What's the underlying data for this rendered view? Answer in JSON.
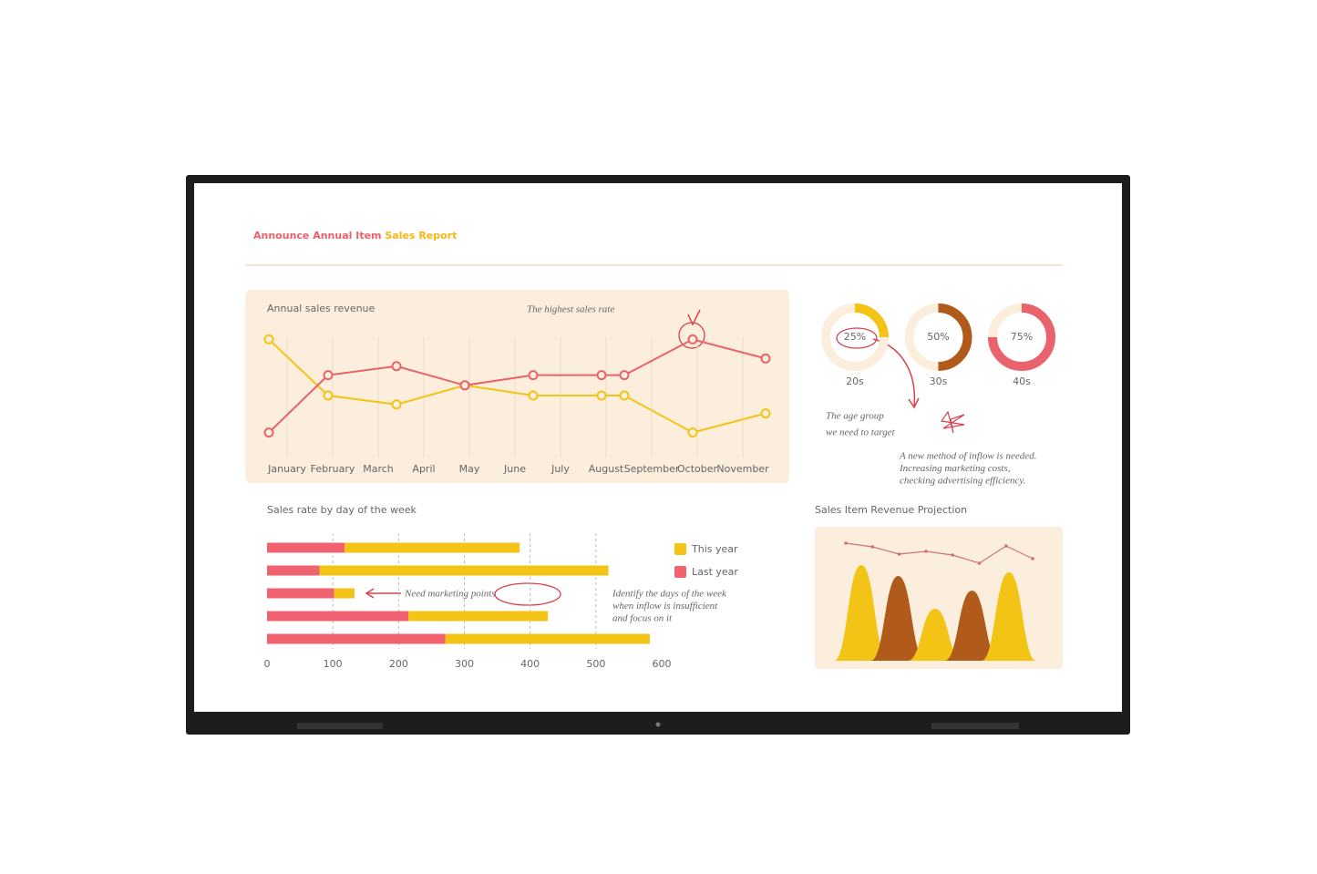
{
  "header": {
    "title": [
      {
        "text": "Announce Annual Item",
        "color": "#e95f6a"
      },
      {
        "text": "Sales Report",
        "color": "#f3b712"
      }
    ]
  },
  "chart_data": [
    {
      "type": "line",
      "title": "Annual sales revenue",
      "annotation": "The highest sales rate",
      "x": [
        -0.4,
        0.9,
        2.4,
        3.9,
        5.4,
        6.9,
        7.4,
        8.9,
        10.5
      ],
      "xlim": [
        -0.8,
        10.9
      ],
      "xticks": [
        {
          "value": 0,
          "label": "January"
        },
        {
          "value": 1,
          "label": "February"
        },
        {
          "value": 2,
          "label": "March"
        },
        {
          "value": 3,
          "label": "April"
        },
        {
          "value": 4,
          "label": "May"
        },
        {
          "value": 5,
          "label": "June"
        },
        {
          "value": 6,
          "label": "July"
        },
        {
          "value": 7,
          "label": "August"
        },
        {
          "value": 8,
          "label": "September"
        },
        {
          "value": 9,
          "label": "October"
        },
        {
          "value": 10,
          "label": "November"
        }
      ],
      "ylim": [
        0,
        100
      ],
      "grid": true,
      "series": [
        {
          "color": "#f3c315",
          "values": [
            84,
            40,
            33,
            48,
            40,
            40,
            40,
            11,
            26
          ]
        },
        {
          "color": "#e8636c",
          "values": [
            11,
            56,
            63,
            48,
            56,
            56,
            56,
            84,
            69
          ]
        }
      ]
    },
    {
      "type": "donut",
      "categories": [
        "20s",
        "30s",
        "40s"
      ],
      "values": [
        25,
        50,
        75
      ],
      "value_labels": [
        "25%",
        "50%",
        "75%"
      ],
      "colors": [
        "#f3c315",
        "#b05a1c",
        "#e8636c"
      ],
      "annotations": [
        "The age group",
        "we need to target"
      ],
      "note": [
        "A new method of inflow is needed.",
        "Increasing marketing costs,",
        "checking advertising efficiency."
      ]
    },
    {
      "type": "hbar",
      "title": "Sales rate by day of the week",
      "categories": [
        null,
        null,
        null,
        null,
        null
      ],
      "series": [
        {
          "name": "This year",
          "color": "#f3c315",
          "values": [
            266,
            439,
            31,
            212,
            311
          ]
        },
        {
          "name": "Last year",
          "color": "#f0626f",
          "values": [
            118,
            80,
            102,
            215,
            271
          ]
        }
      ],
      "xlim": [
        0,
        600
      ],
      "xticks": [
        0,
        100,
        200,
        300,
        400,
        500,
        600
      ],
      "grid": true,
      "annotation": "Need marketing points",
      "note": [
        "Identify the days of the week",
        "when inflow is insufficient",
        "and focus on it"
      ]
    },
    {
      "type": "area",
      "title": "Sales Item Revenue Projection",
      "ylim": [
        0,
        140
      ],
      "values": [
        105,
        93,
        57,
        77,
        97
      ],
      "colors": [
        "#f3c315",
        "#b05a1c",
        "#f3c315",
        "#b05a1c",
        "#f3c315"
      ],
      "line": {
        "color": "#d0707a",
        "values": [
          129,
          125,
          117,
          120,
          116,
          107,
          126,
          112
        ]
      }
    }
  ]
}
